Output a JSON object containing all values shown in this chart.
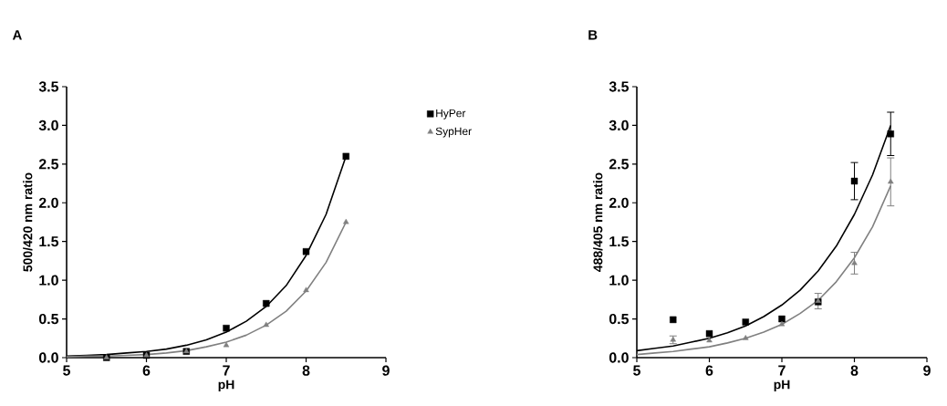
{
  "chart_data": [
    {
      "type": "scatter",
      "title": "A",
      "xlabel": "pH",
      "ylabel": "500/420 nm ratio",
      "xlim": [
        5,
        9
      ],
      "ylim": [
        0,
        3.5
      ],
      "xticks": [
        5,
        6,
        7,
        8,
        9
      ],
      "yticks": [
        {
          "value": 0,
          "label": "0.0"
        },
        {
          "value": 0.5,
          "label": "0.5"
        },
        {
          "value": 1,
          "label": "1.0"
        },
        {
          "value": 1.5,
          "label": "1.5"
        },
        {
          "value": 2,
          "label": "2.0"
        },
        {
          "value": 2.5,
          "label": "2.5"
        },
        {
          "value": 3,
          "label": "3.0"
        },
        {
          "value": 3.5,
          "label": "3.5"
        }
      ],
      "legend": "right",
      "grid": false,
      "x": [
        5.5,
        6,
        6.5,
        7,
        7.5,
        8,
        8.5
      ],
      "series": [
        {
          "name": "HyPer",
          "color": "#000000",
          "marker": "square",
          "values": [
            0.0,
            0.03,
            0.08,
            0.38,
            0.7,
            1.37,
            2.6
          ]
        },
        {
          "name": "SypHer",
          "color": "#808080",
          "marker": "triangle",
          "values": [
            0.0,
            0.03,
            0.08,
            0.16,
            0.42,
            0.87,
            1.75
          ]
        },
        {
          "type": "line",
          "color": "#000000",
          "marker": "none",
          "x": [
            5,
            5.25,
            5.5,
            5.75,
            6,
            6.25,
            6.5,
            6.75,
            7,
            7.25,
            7.5,
            7.75,
            8,
            8.25,
            8.5
          ],
          "values": [
            0.02,
            0.03,
            0.04,
            0.06,
            0.08,
            0.11,
            0.16,
            0.23,
            0.33,
            0.47,
            0.66,
            0.93,
            1.32,
            1.85,
            2.6
          ]
        },
        {
          "type": "line",
          "color": "#808080",
          "marker": "none",
          "x": [
            5,
            5.25,
            5.5,
            5.75,
            6,
            6.25,
            6.5,
            6.75,
            7,
            7.25,
            7.5,
            7.75,
            8,
            8.25,
            8.5
          ],
          "values": [
            0.01,
            0.02,
            0.02,
            0.03,
            0.04,
            0.06,
            0.09,
            0.14,
            0.2,
            0.29,
            0.42,
            0.6,
            0.86,
            1.23,
            1.75
          ]
        }
      ]
    },
    {
      "type": "scatter",
      "title": "B",
      "xlabel": "pH",
      "ylabel": "488/405 nm ratio",
      "xlim": [
        5,
        9
      ],
      "ylim": [
        0,
        3.5
      ],
      "xticks": [
        5,
        6,
        7,
        8,
        9
      ],
      "yticks": [
        {
          "value": 0,
          "label": "0.0"
        },
        {
          "value": 0.5,
          "label": "0.5"
        },
        {
          "value": 1,
          "label": "1.0"
        },
        {
          "value": 1.5,
          "label": "1.5"
        },
        {
          "value": 2,
          "label": "2.0"
        },
        {
          "value": 2.5,
          "label": "2.5"
        },
        {
          "value": 3,
          "label": "3.0"
        },
        {
          "value": 3.5,
          "label": "3.5"
        }
      ],
      "grid": false,
      "x": [
        5.5,
        6,
        6.5,
        7,
        7.5,
        8,
        8.5
      ],
      "series": [
        {
          "color": "#000000",
          "marker": "square",
          "values": [
            0.49,
            0.31,
            0.46,
            0.5,
            0.72,
            2.28,
            2.89
          ],
          "errors": [
            null,
            null,
            null,
            null,
            null,
            0.24,
            0.28
          ]
        },
        {
          "color": "#808080",
          "marker": "triangle",
          "values": [
            0.23,
            0.22,
            0.25,
            0.43,
            0.73,
            1.22,
            2.27
          ],
          "errors": [
            0.05,
            null,
            null,
            null,
            0.1,
            0.14,
            0.31
          ]
        },
        {
          "type": "line",
          "color": "#000000",
          "marker": "none",
          "x": [
            5,
            5.25,
            5.5,
            5.75,
            6,
            6.25,
            6.5,
            6.75,
            7,
            7.25,
            7.5,
            7.75,
            8,
            8.25,
            8.5
          ],
          "values": [
            0.09,
            0.12,
            0.15,
            0.2,
            0.25,
            0.32,
            0.41,
            0.53,
            0.68,
            0.87,
            1.12,
            1.44,
            1.85,
            2.36,
            3.0
          ]
        },
        {
          "type": "line",
          "color": "#808080",
          "marker": "none",
          "x": [
            5,
            5.25,
            5.5,
            5.75,
            6,
            6.25,
            6.5,
            6.75,
            7,
            7.25,
            7.5,
            7.75,
            8,
            8.25,
            8.5
          ],
          "values": [
            0.04,
            0.06,
            0.08,
            0.11,
            0.14,
            0.19,
            0.25,
            0.33,
            0.43,
            0.57,
            0.74,
            0.98,
            1.29,
            1.69,
            2.22
          ]
        }
      ]
    }
  ]
}
